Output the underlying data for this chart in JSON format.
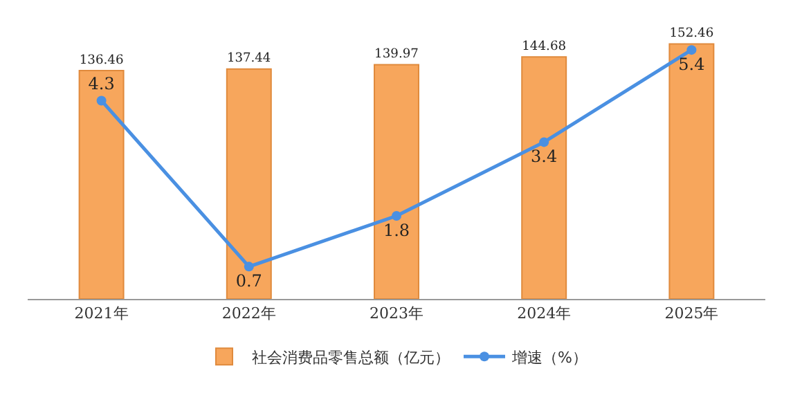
{
  "chart_data": {
    "type": "bar",
    "categories": [
      "2021年",
      "2022年",
      "2023年",
      "2024年",
      "2025年"
    ],
    "series": [
      {
        "name": "社会消费品零售总额（亿元）",
        "color": "#f7a65c",
        "values": [
          136.46,
          137.44,
          139.97,
          144.68,
          152.46
        ]
      },
      {
        "name": "增速（%）",
        "type": "line",
        "axis": "y2",
        "color": "#4a90e2",
        "values": [
          4.3,
          0.7,
          1.8,
          3.4,
          5.4
        ]
      }
    ],
    "tick_labels": "x",
    "legend": "bottom",
    "marker": "circle",
    "line_style": "solid",
    "data_labels": true
  }
}
